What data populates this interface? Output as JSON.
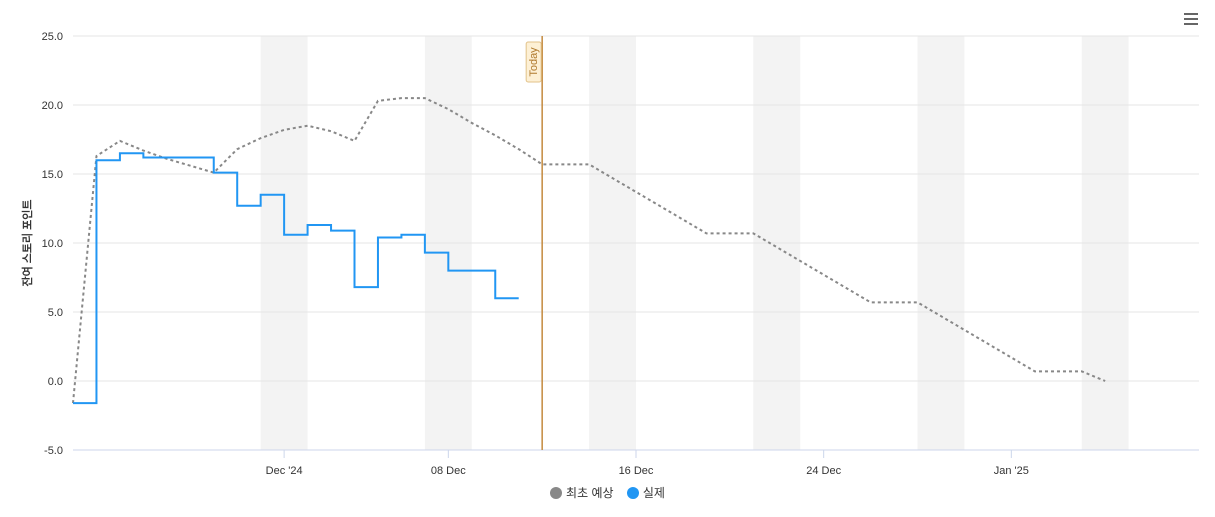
{
  "chart_data": {
    "type": "line",
    "title": "",
    "xlabel": "",
    "ylabel": "잔여 스토리 포인트",
    "ylim": [
      -5,
      25
    ],
    "y_ticks": [
      "25.0",
      "20.0",
      "15.0",
      "10.0",
      "5.0",
      "0.0",
      "-5.0"
    ],
    "x_range": [
      "2024-11-22",
      "2025-01-09"
    ],
    "x_ticks": [
      {
        "date": "2024-12-01",
        "label": "Dec '24"
      },
      {
        "date": "2024-12-08",
        "label": "08 Dec"
      },
      {
        "date": "2024-12-16",
        "label": "16 Dec"
      },
      {
        "date": "2024-12-24",
        "label": "24 Dec"
      },
      {
        "date": "2025-01-01",
        "label": "Jan '25"
      }
    ],
    "weekend_bands": [
      [
        "2024-11-30",
        "2024-12-02"
      ],
      [
        "2024-12-07",
        "2024-12-09"
      ],
      [
        "2024-12-14",
        "2024-12-16"
      ],
      [
        "2024-12-21",
        "2024-12-23"
      ],
      [
        "2024-12-28",
        "2024-12-30"
      ],
      [
        "2025-01-04",
        "2025-01-06"
      ]
    ],
    "today": {
      "date": "2024-12-12",
      "label": "Today",
      "color": "#c48a3f"
    },
    "grid": true,
    "legend_position": "bottom-center",
    "series": [
      {
        "name": "최초 예상",
        "color": "#888888",
        "style": "dashed",
        "points": [
          [
            "2024-11-22",
            -1.6
          ],
          [
            "2024-11-23",
            16.3
          ],
          [
            "2024-11-24",
            17.4
          ],
          [
            "2024-11-25",
            16.7
          ],
          [
            "2024-11-26",
            16.1
          ],
          [
            "2024-11-27",
            15.6
          ],
          [
            "2024-11-28",
            15.1
          ],
          [
            "2024-11-29",
            16.8
          ],
          [
            "2024-11-30",
            17.6
          ],
          [
            "2024-12-01",
            18.2
          ],
          [
            "2024-12-02",
            18.5
          ],
          [
            "2024-12-03",
            18.1
          ],
          [
            "2024-12-04",
            17.4
          ],
          [
            "2024-12-05",
            20.3
          ],
          [
            "2024-12-06",
            20.5
          ],
          [
            "2024-12-07",
            20.5
          ],
          [
            "2024-12-08",
            19.7
          ],
          [
            "2024-12-09",
            18.7
          ],
          [
            "2024-12-10",
            17.8
          ],
          [
            "2024-12-11",
            16.8
          ],
          [
            "2024-12-12",
            15.7
          ],
          [
            "2024-12-14",
            15.7
          ],
          [
            "2024-12-19",
            10.7
          ],
          [
            "2024-12-21",
            10.7
          ],
          [
            "2024-12-26",
            5.7
          ],
          [
            "2024-12-28",
            5.7
          ],
          [
            "2025-01-02",
            0.7
          ],
          [
            "2025-01-04",
            0.7
          ],
          [
            "2025-01-05",
            0.0
          ]
        ]
      },
      {
        "name": "실제",
        "color": "#2196f3",
        "style": "step",
        "points": [
          [
            "2024-11-22",
            -1.6
          ],
          [
            "2024-11-23",
            16.0
          ],
          [
            "2024-11-24",
            16.5
          ],
          [
            "2024-11-25",
            16.2
          ],
          [
            "2024-11-28",
            15.1
          ],
          [
            "2024-11-29",
            12.7
          ],
          [
            "2024-11-30",
            13.5
          ],
          [
            "2024-12-01",
            10.6
          ],
          [
            "2024-12-02",
            11.3
          ],
          [
            "2024-12-03",
            10.9
          ],
          [
            "2024-12-04",
            6.8
          ],
          [
            "2024-12-05",
            10.4
          ],
          [
            "2024-12-06",
            10.6
          ],
          [
            "2024-12-07",
            9.3
          ],
          [
            "2024-12-08",
            8.0
          ],
          [
            "2024-12-10",
            6.0
          ]
        ],
        "end_date": "2024-12-11"
      }
    ]
  },
  "legend": {
    "forecast_label": "최초 예상",
    "actual_label": "실제"
  }
}
